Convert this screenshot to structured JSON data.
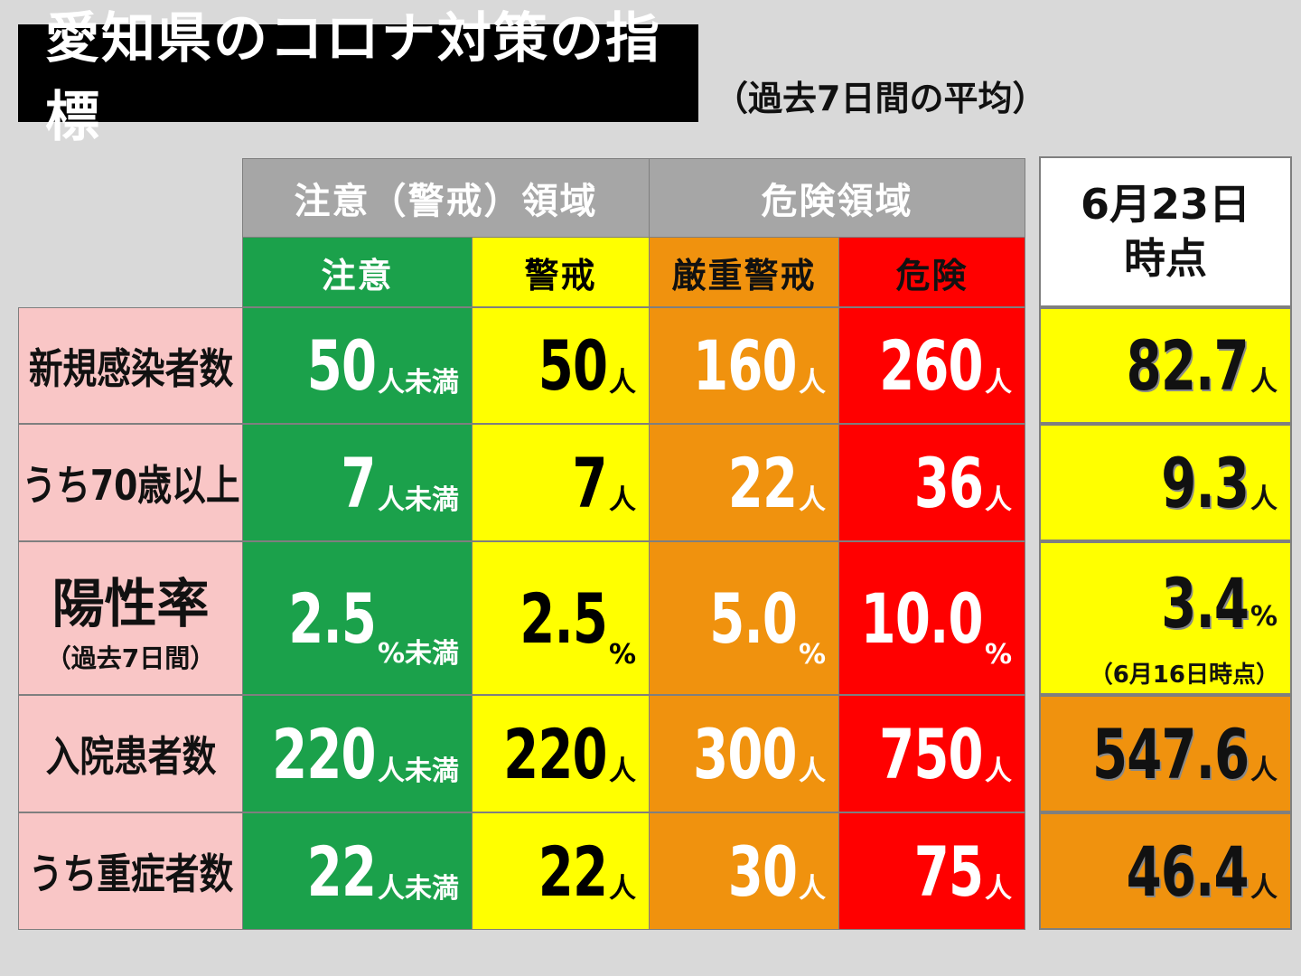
{
  "title": "愛知県のコロナ対策の指標",
  "subtitle": "（過去7日間の平均）",
  "groups": {
    "caution": "注意（警戒）領域",
    "danger": "危険領域"
  },
  "levels": [
    "注意",
    "警戒",
    "厳重警戒",
    "危険"
  ],
  "current_header": {
    "date": "6月23日",
    "suffix": "時点"
  },
  "colors": {
    "green": "#1ba14b",
    "yellow": "#ffff00",
    "orange": "#f0920e",
    "red": "#ff0000",
    "label_pink": "#f9c6c6",
    "header_gray": "#a6a6a6"
  },
  "chart_data": {
    "type": "table",
    "rows": [
      {
        "label": "新規感染者数",
        "thresholds": [
          {
            "value": "50",
            "unit": "人未満"
          },
          {
            "value": "50",
            "unit": "人"
          },
          {
            "value": "160",
            "unit": "人"
          },
          {
            "value": "260",
            "unit": "人"
          }
        ],
        "current": {
          "value": "82.7",
          "unit": "人"
        }
      },
      {
        "label": "うち70歳以上",
        "thresholds": [
          {
            "value": "7",
            "unit": "人未満"
          },
          {
            "value": "7",
            "unit": "人"
          },
          {
            "value": "22",
            "unit": "人"
          },
          {
            "value": "36",
            "unit": "人"
          }
        ],
        "current": {
          "value": "9.3",
          "unit": "人"
        }
      },
      {
        "label": "陽性率",
        "sublabel": "（過去7日間）",
        "thresholds": [
          {
            "value": "2.5",
            "unit": "%未満"
          },
          {
            "value": "2.5",
            "unit": "%"
          },
          {
            "value": "5.0",
            "unit": "%"
          },
          {
            "value": "10.0",
            "unit": "%"
          }
        ],
        "current": {
          "value": "3.4",
          "unit": "%",
          "note": "（6月16日時点）"
        }
      },
      {
        "label": "入院患者数",
        "thresholds": [
          {
            "value": "220",
            "unit": "人未満"
          },
          {
            "value": "220",
            "unit": "人"
          },
          {
            "value": "300",
            "unit": "人"
          },
          {
            "value": "750",
            "unit": "人"
          }
        ],
        "current": {
          "value": "547.6",
          "unit": "人"
        }
      },
      {
        "label": "うち重症者数",
        "thresholds": [
          {
            "value": "22",
            "unit": "人未満"
          },
          {
            "value": "22",
            "unit": "人"
          },
          {
            "value": "30",
            "unit": "人"
          },
          {
            "value": "75",
            "unit": "人"
          }
        ],
        "current": {
          "value": "46.4",
          "unit": "人"
        }
      }
    ]
  }
}
